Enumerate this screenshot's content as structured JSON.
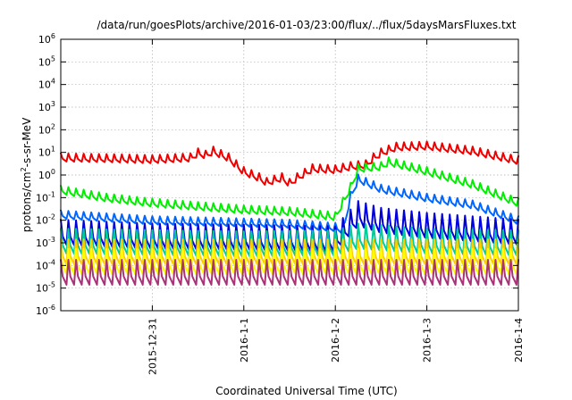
{
  "chart_data": {
    "type": "line",
    "title": "/data/run/goesPlots/archive/2016-01-03/23:00/flux/../flux/5daysMarsFluxes.txt",
    "xlabel": "Coordinated Universal Time (UTC)",
    "ylabel_base": "protons/cm",
    "ylabel_sup": "2",
    "ylabel_rest": "-s-sr-MeV",
    "y_scale": "log",
    "ylim_exp": [
      -6,
      6
    ],
    "y_ticks": [
      {
        "base": "10",
        "exp": "-6",
        "value_exp": -6
      },
      {
        "base": "10",
        "exp": "-5",
        "value_exp": -5
      },
      {
        "base": "10",
        "exp": "-4",
        "value_exp": -4
      },
      {
        "base": "10",
        "exp": "-3",
        "value_exp": -3
      },
      {
        "base": "10",
        "exp": "-2",
        "value_exp": -2
      },
      {
        "base": "10",
        "exp": "-1",
        "value_exp": -1
      },
      {
        "base": "10",
        "exp": "0",
        "value_exp": 0
      },
      {
        "base": "10",
        "exp": "1",
        "value_exp": 1
      },
      {
        "base": "10",
        "exp": "2",
        "value_exp": 2
      },
      {
        "base": "10",
        "exp": "3",
        "value_exp": 3
      },
      {
        "base": "10",
        "exp": "4",
        "value_exp": 4
      },
      {
        "base": "10",
        "exp": "5",
        "value_exp": 5
      },
      {
        "base": "10",
        "exp": "6",
        "value_exp": 6
      }
    ],
    "xlim": [
      "2015-12-30T00:00",
      "2016-01-04T00:00"
    ],
    "x_ticks": [
      {
        "label": "2015-12-31",
        "date": "2015-12-31T00:00"
      },
      {
        "label": "2016-1-1",
        "date": "2016-01-01T00:00"
      },
      {
        "label": "2016-1-2",
        "date": "2016-01-02T00:00"
      },
      {
        "label": "2016-1-3",
        "date": "2016-01-03T00:00"
      },
      {
        "label": "2016-1-4",
        "date": "2016-01-04T00:00"
      }
    ],
    "grid": true,
    "series": [
      {
        "color": "#ee0000",
        "points": [
          [
            "2015-12-30T00:00",
            6
          ],
          [
            "2015-12-30T14:00",
            5.5
          ],
          [
            "2015-12-31T00:00",
            5
          ],
          [
            "2015-12-31T10:00",
            6
          ],
          [
            "2015-12-31T12:00",
            10
          ],
          [
            "2015-12-31T14:00",
            8
          ],
          [
            "2015-12-31T16:00",
            12
          ],
          [
            "2015-12-31T20:00",
            6
          ],
          [
            "2016-01-01T00:00",
            1.5
          ],
          [
            "2016-01-01T04:00",
            0.8
          ],
          [
            "2016-01-01T06:00",
            0.5
          ],
          [
            "2016-01-01T10:00",
            0.8
          ],
          [
            "2016-01-01T12:00",
            0.45
          ],
          [
            "2016-01-01T14:00",
            0.8
          ],
          [
            "2016-01-01T18:00",
            2
          ],
          [
            "2016-01-02T00:00",
            1.8
          ],
          [
            "2016-01-02T04:00",
            2.5
          ],
          [
            "2016-01-02T08:00",
            3
          ],
          [
            "2016-01-02T10:00",
            6
          ],
          [
            "2016-01-02T12:00",
            10
          ],
          [
            "2016-01-02T16:00",
            18
          ],
          [
            "2016-01-03T00:00",
            20
          ],
          [
            "2016-01-03T12:00",
            12
          ],
          [
            "2016-01-04T00:00",
            4.5
          ]
        ]
      },
      {
        "color": "#00ee00",
        "points": [
          [
            "2015-12-30T00:00",
            0.22
          ],
          [
            "2015-12-30T12:00",
            0.1
          ],
          [
            "2015-12-31T00:00",
            0.06
          ],
          [
            "2016-01-01T00:00",
            0.03
          ],
          [
            "2016-01-01T12:00",
            0.025
          ],
          [
            "2016-01-02T00:00",
            0.015
          ],
          [
            "2016-01-02T04:00",
            0.3
          ],
          [
            "2016-01-02T06:00",
            2
          ],
          [
            "2016-01-02T12:00",
            2.5
          ],
          [
            "2016-01-02T14:00",
            4
          ],
          [
            "2016-01-03T00:00",
            1.5
          ],
          [
            "2016-01-03T12:00",
            0.4
          ],
          [
            "2016-01-04T00:00",
            0.06
          ]
        ]
      },
      {
        "color": "#0066ff",
        "points": [
          [
            "2015-12-30T00:00",
            0.018
          ],
          [
            "2015-12-31T00:00",
            0.01
          ],
          [
            "2016-01-01T00:00",
            0.008
          ],
          [
            "2016-01-01T12:00",
            0.007
          ],
          [
            "2016-01-02T00:00",
            0.005
          ],
          [
            "2016-01-02T02:00",
            0.004
          ],
          [
            "2016-01-02T04:00",
            0.12
          ],
          [
            "2016-01-02T06:00",
            0.7
          ],
          [
            "2016-01-02T12:00",
            0.25
          ],
          [
            "2016-01-03T00:00",
            0.1
          ],
          [
            "2016-01-03T12:00",
            0.05
          ],
          [
            "2016-01-04T00:00",
            0.01
          ]
        ]
      },
      {
        "color": "#0000dd",
        "points": [
          [
            "2015-12-30T00:00",
            0.003
          ],
          [
            "2015-12-31T00:00",
            0.002
          ],
          [
            "2016-01-01T00:00",
            0.0018
          ],
          [
            "2016-01-02T00:00",
            0.0015
          ],
          [
            "2016-01-02T06:00",
            0.02
          ],
          [
            "2016-01-02T12:00",
            0.01
          ],
          [
            "2016-01-03T00:00",
            0.006
          ],
          [
            "2016-01-04T00:00",
            0.003
          ]
        ]
      },
      {
        "color": "#00cc99",
        "points": [
          [
            "2015-12-30T00:00",
            0.0012
          ],
          [
            "2016-01-01T00:00",
            0.0009
          ],
          [
            "2016-01-02T00:00",
            0.001
          ],
          [
            "2016-01-02T06:00",
            0.002
          ],
          [
            "2016-01-03T00:00",
            0.0012
          ],
          [
            "2016-01-04T00:00",
            0.001
          ]
        ]
      },
      {
        "color": "#ffcc00",
        "points": [
          [
            "2015-12-30T00:00",
            0.0004
          ],
          [
            "2016-01-01T00:00",
            0.0004
          ],
          [
            "2016-01-02T00:00",
            0.0004
          ],
          [
            "2016-01-03T00:00",
            0.0004
          ],
          [
            "2016-01-04T00:00",
            0.0004
          ]
        ]
      },
      {
        "color": "#ffff00",
        "points": [
          [
            "2015-12-30T00:00",
            0.00015
          ],
          [
            "2016-01-01T00:00",
            0.00015
          ],
          [
            "2016-01-02T00:00",
            0.00015
          ],
          [
            "2016-01-03T00:00",
            0.00015
          ],
          [
            "2016-01-04T00:00",
            0.00015
          ]
        ]
      },
      {
        "color": "#aa3377",
        "points": [
          [
            "2015-12-30T00:00",
            5e-05
          ],
          [
            "2016-01-01T00:00",
            5e-05
          ],
          [
            "2016-01-02T00:00",
            5e-05
          ],
          [
            "2016-01-03T00:00",
            5e-05
          ],
          [
            "2016-01-04T00:00",
            5e-05
          ]
        ]
      }
    ]
  }
}
